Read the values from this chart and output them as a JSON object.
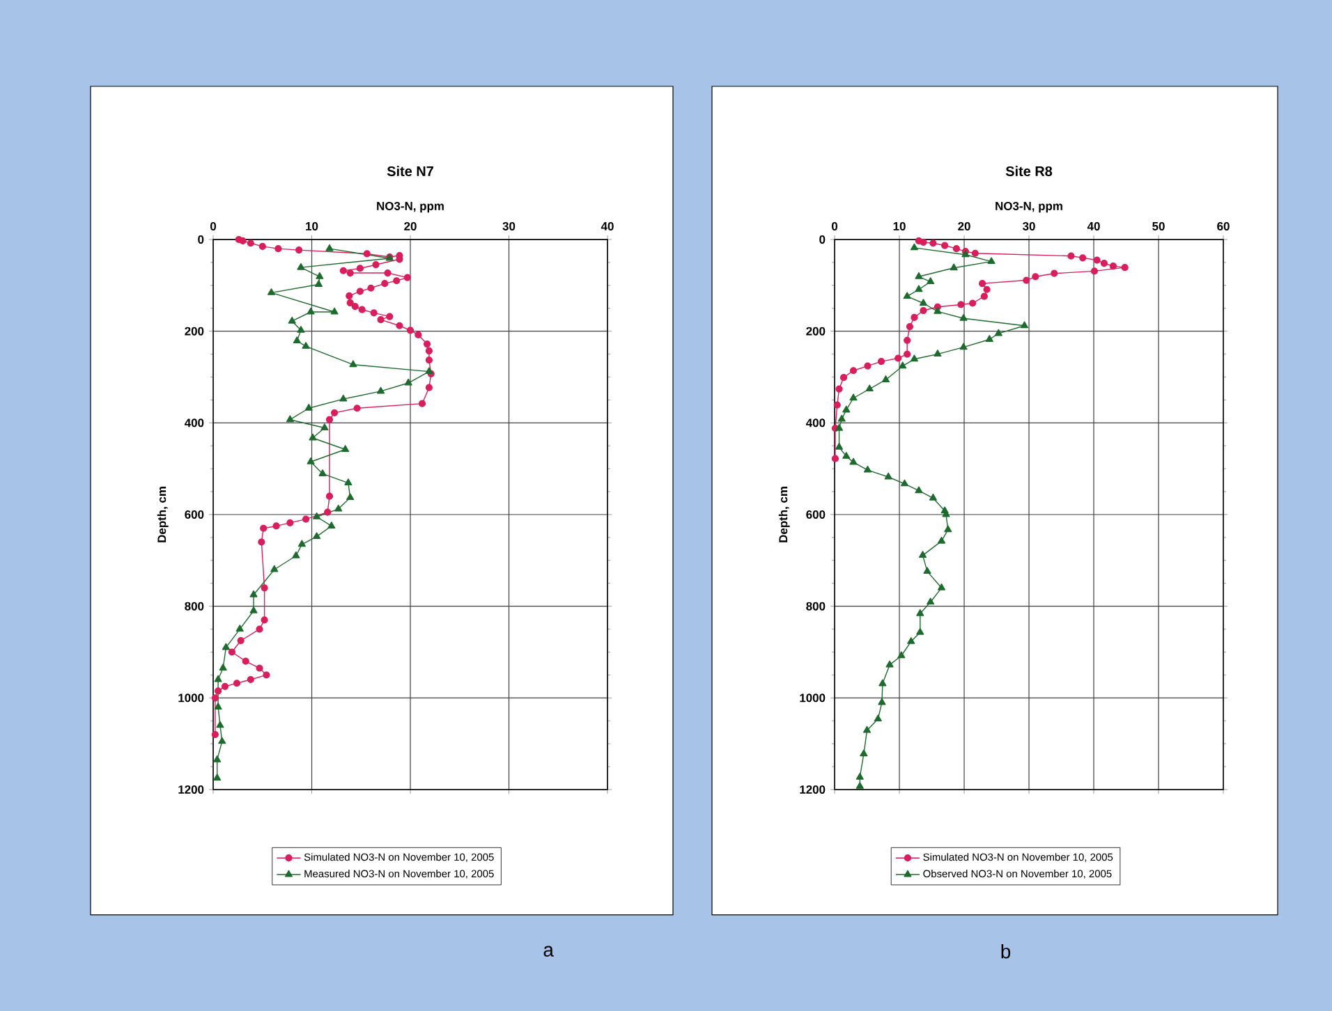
{
  "chart_data": [
    {
      "type": "line",
      "title": "Site N7",
      "xlabel": "NO3-N, ppm",
      "ylabel": "Depth, cm",
      "xlim": [
        0,
        40
      ],
      "xticks": [
        0,
        10,
        20,
        30,
        40
      ],
      "ylim": [
        1200,
        0
      ],
      "yticks": [
        0,
        200,
        400,
        600,
        800,
        1000,
        1200
      ],
      "grid": true,
      "legend": "bottom",
      "line_style": "solid",
      "annotations": [
        "a"
      ],
      "series": [
        {
          "name": "Simulated NO3-N on November 10, 2005",
          "color": "#d81e5b",
          "marker": "circle",
          "x": [
            2.6,
            3,
            3.8,
            5,
            6.6,
            8.7,
            15.6,
            17.9,
            18.9,
            18.9,
            16.5,
            14.9,
            13.2,
            13.9,
            17.7,
            19.7,
            18.6,
            17.4,
            16,
            14.9,
            13.8,
            13.9,
            14.4,
            15.1,
            16.3,
            17.9,
            17,
            18.9,
            20,
            20.8,
            21.7,
            21.9,
            21.9,
            22.1,
            21.9,
            21.2,
            14.6,
            12.3,
            11.8,
            11.8,
            11.6,
            9.4,
            7.8,
            6.4,
            5.1,
            4.9,
            5.2,
            5.2,
            4.7,
            2.8,
            1.9,
            3.3,
            4.7,
            5.4,
            3.8,
            2.4,
            1.2,
            0.5,
            0.2,
            0.2
          ],
          "values": [
            0,
            3,
            8,
            15,
            20,
            23,
            31,
            38,
            35,
            43,
            55,
            63,
            68,
            73,
            73,
            83,
            90,
            96,
            106,
            113,
            123,
            138,
            146,
            153,
            160,
            168,
            175,
            188,
            198,
            208,
            228,
            243,
            263,
            293,
            323,
            358,
            368,
            378,
            393,
            560,
            595,
            610,
            618,
            625,
            630,
            660,
            760,
            830,
            850,
            875,
            900,
            920,
            935,
            950,
            960,
            968,
            975,
            985,
            1000,
            1080
          ]
        },
        {
          "name": "Measured NO3-N on November 10, 2005",
          "color": "#1e6b2e",
          "marker": "triangle",
          "x": [
            11.8,
            17.9,
            8.9,
            10.8,
            10.7,
            5.9,
            12.3,
            9.9,
            8,
            8.9,
            8.5,
            9.4,
            14.2,
            21.9,
            19.8,
            17,
            13.2,
            9.7,
            7.8,
            11.3,
            10.1,
            13.4,
            9.9,
            11.1,
            13.7,
            13.9,
            12.7,
            10.5,
            12,
            10.5,
            9,
            8.4,
            6.2,
            4.1,
            4.1,
            2.7,
            1.3,
            1,
            0.5,
            0.5,
            0.7,
            0.9,
            0.4,
            0.4
          ],
          "values": [
            20,
            41,
            61,
            81,
            98,
            116,
            158,
            158,
            178,
            198,
            221,
            233,
            273,
            288,
            313,
            331,
            348,
            368,
            393,
            411,
            433,
            458,
            485,
            511,
            531,
            563,
            588,
            605,
            625,
            648,
            665,
            690,
            720,
            775,
            810,
            850,
            890,
            935,
            960,
            1020,
            1060,
            1095,
            1135,
            1175
          ]
        }
      ]
    },
    {
      "type": "line",
      "title": "Site R8",
      "xlabel": "NO3-N, ppm",
      "ylabel": "Depth, cm",
      "xlim": [
        0,
        60
      ],
      "xticks": [
        0,
        10,
        20,
        30,
        40,
        50,
        60
      ],
      "ylim": [
        1200,
        0
      ],
      "yticks": [
        0,
        200,
        400,
        600,
        800,
        1000,
        1200
      ],
      "grid": true,
      "legend": "bottom",
      "line_style": "solid",
      "annotations": [
        "b"
      ],
      "series": [
        {
          "name": "Simulated NO3-N on November 10, 2005",
          "color": "#d81e5b",
          "marker": "circle",
          "x": [
            13,
            13.7,
            15.2,
            17,
            18.8,
            20.2,
            21.7,
            36.5,
            38.3,
            40.5,
            41.6,
            43,
            44.8,
            40.1,
            33.9,
            31,
            29.6,
            22.8,
            23.5,
            23.1,
            21.3,
            19.5,
            15.9,
            13.7,
            12.3,
            11.6,
            11.2,
            11.2,
            9.8,
            7.2,
            5.1,
            2.9,
            1.4,
            0.7,
            0.4,
            0.1,
            0.1
          ],
          "values": [
            3,
            6,
            8,
            13,
            20,
            26,
            30,
            36,
            40,
            45,
            52,
            58,
            61,
            69,
            74,
            81,
            89,
            96,
            109,
            124,
            139,
            142,
            147,
            155,
            170,
            190,
            220,
            250,
            259,
            266,
            276,
            286,
            301,
            326,
            361,
            412,
            478
          ]
        },
        {
          "name": "Observed NO3-N on November 10, 2005",
          "color": "#1e6b2e",
          "marker": "triangle",
          "x": [
            12.3,
            20.2,
            24.2,
            18.4,
            13,
            14.8,
            13,
            11.2,
            13.7,
            15.9,
            19.9,
            29.3,
            25.3,
            23.9,
            19.9,
            15.9,
            12.3,
            10.5,
            7.9,
            5.4,
            2.9,
            1.8,
            1.1,
            0.7,
            0.7,
            1.8,
            2.9,
            5.1,
            8.3,
            10.8,
            13,
            15.2,
            17,
            17.2,
            17.5,
            16.5,
            13.6,
            14.3,
            16.5,
            14.8,
            13.2,
            13.2,
            11.8,
            10.3,
            8.5,
            7.4,
            7.3,
            6.7,
            5,
            4.5,
            3.9,
            3.9
          ],
          "values": [
            18,
            33,
            48,
            62,
            81,
            92,
            109,
            124,
            139,
            157,
            172,
            188,
            205,
            218,
            235,
            250,
            261,
            276,
            306,
            326,
            346,
            372,
            392,
            412,
            453,
            473,
            486,
            503,
            518,
            533,
            548,
            564,
            592,
            600,
            633,
            658,
            689,
            724,
            760,
            791,
            816,
            857,
            877,
            908,
            928,
            969,
            1010,
            1046,
            1071,
            1122,
            1173,
            1193
          ]
        }
      ]
    }
  ]
}
